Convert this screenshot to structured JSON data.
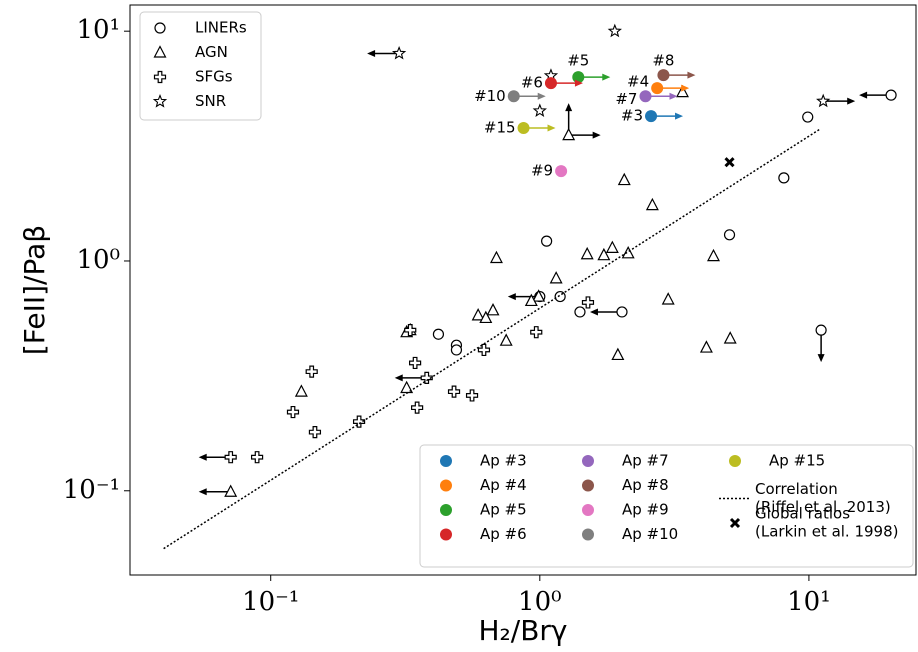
{
  "chart_data": {
    "type": "scatter",
    "xlabel": "H₂/Brγ",
    "ylabel": "[FeII]/Paβ",
    "xscale": "log",
    "yscale": "log",
    "xlim": [
      0.03,
      25
    ],
    "ylim": [
      0.043,
      13
    ],
    "xticks": [
      {
        "value": 0.1,
        "label": "10⁻¹"
      },
      {
        "value": 1,
        "label": "10⁰"
      },
      {
        "value": 10,
        "label": "10¹"
      }
    ],
    "yticks": [
      {
        "value": 0.1,
        "label": "10⁻¹"
      },
      {
        "value": 1,
        "label": "10⁰"
      },
      {
        "value": 10,
        "label": "10¹"
      }
    ],
    "series": [
      {
        "name": "LINERs",
        "marker": "circle",
        "color": "#000000",
        "legend": "upper left",
        "x": [
          20.2,
          9.9,
          8.07,
          5.07,
          1.06,
          1.0,
          1.19,
          1.41,
          2.02,
          0.42,
          0.49,
          0.49,
          11.1
        ],
        "y": [
          5.27,
          4.23,
          2.3,
          1.3,
          1.22,
          0.7,
          0.7,
          0.6,
          0.6,
          0.48,
          0.43,
          0.41,
          0.5
        ],
        "limits": [
          "left",
          null,
          null,
          null,
          null,
          "left",
          null,
          null,
          "left",
          null,
          null,
          null,
          "down"
        ]
      },
      {
        "name": "AGN",
        "marker": "triangle",
        "color": "#000000",
        "legend": "upper left",
        "x": [
          3.39,
          1.28,
          2.06,
          2.62,
          0.69,
          1.5,
          1.73,
          1.86,
          2.13,
          1.15,
          0.99,
          0.93,
          3.0,
          4.42,
          0.67,
          0.59,
          0.63,
          0.75,
          0.33,
          0.32,
          1.95,
          4.16,
          5.1,
          0.32,
          0.13,
          0.071
        ],
        "y": [
          5.43,
          3.53,
          2.25,
          1.75,
          1.03,
          1.07,
          1.06,
          1.14,
          1.08,
          0.84,
          0.7,
          0.67,
          0.68,
          1.05,
          0.61,
          0.58,
          0.565,
          0.45,
          0.5,
          0.49,
          0.39,
          0.42,
          0.46,
          0.28,
          0.27,
          0.099
        ],
        "limits": [
          null,
          "up-right",
          null,
          null,
          null,
          null,
          null,
          null,
          null,
          null,
          null,
          null,
          null,
          null,
          null,
          null,
          null,
          null,
          null,
          null,
          null,
          null,
          null,
          null,
          null,
          "left"
        ]
      },
      {
        "name": "SFGs",
        "marker": "plus",
        "color": "#000000",
        "legend": "upper left",
        "x": [
          0.071,
          0.089,
          0.142,
          0.121,
          0.146,
          0.213,
          0.33,
          0.344,
          0.38,
          0.35,
          0.48,
          0.56,
          0.62,
          0.97,
          1.51
        ],
        "y": [
          0.14,
          0.14,
          0.33,
          0.22,
          0.18,
          0.2,
          0.5,
          0.36,
          0.31,
          0.23,
          0.27,
          0.26,
          0.41,
          0.49,
          0.66
        ],
        "limits": [
          "left",
          null,
          null,
          null,
          null,
          null,
          null,
          null,
          "left",
          null,
          null,
          null,
          null,
          null,
          null
        ]
      },
      {
        "name": "SNR",
        "marker": "star",
        "color": "#000000",
        "legend": "upper left",
        "x": [
          0.3,
          1.9,
          1.1,
          1.0,
          11.3
        ],
        "y": [
          8.0,
          10.0,
          6.4,
          4.5,
          4.96
        ],
        "limits": [
          "left",
          null,
          null,
          null,
          "right"
        ]
      },
      {
        "name": "Ap #3",
        "point_label": "#3",
        "marker": "dot",
        "color": "#1f77b4",
        "legend": "lower right",
        "x": [
          2.59
        ],
        "y": [
          4.27
        ],
        "limits": [
          "right"
        ]
      },
      {
        "name": "Ap #4",
        "point_label": "#4",
        "marker": "dot",
        "color": "#ff7f0e",
        "legend": "lower right",
        "x": [
          2.73
        ],
        "y": [
          5.65
        ],
        "limits": [
          "right"
        ]
      },
      {
        "name": "Ap #5",
        "point_label": "#5",
        "marker": "dot",
        "color": "#2ca02c",
        "legend": "lower right",
        "x": [
          1.39
        ],
        "y": [
          6.31
        ],
        "limits": [
          "right"
        ]
      },
      {
        "name": "Ap #6",
        "point_label": "#6",
        "marker": "dot",
        "color": "#d62728",
        "legend": "lower right",
        "x": [
          1.1
        ],
        "y": [
          5.94
        ],
        "limits": [
          "right"
        ]
      },
      {
        "name": "Ap #7",
        "point_label": "#7",
        "marker": "dot",
        "color": "#9467bd",
        "legend": "lower right",
        "x": [
          2.47
        ],
        "y": [
          5.21
        ],
        "limits": [
          "right"
        ]
      },
      {
        "name": "Ap #8",
        "point_label": "#8",
        "marker": "dot",
        "color": "#8c564b",
        "legend": "lower right",
        "x": [
          2.88
        ],
        "y": [
          6.44
        ],
        "limits": [
          "right"
        ]
      },
      {
        "name": "Ap #9",
        "point_label": "#9",
        "marker": "dot",
        "color": "#e377c2",
        "legend": "lower right",
        "x": [
          1.2
        ],
        "y": [
          2.46
        ],
        "limits": [
          null
        ]
      },
      {
        "name": "Ap #10",
        "point_label": "#10",
        "marker": "dot",
        "color": "#7f7f7f",
        "legend": "lower right",
        "x": [
          0.8
        ],
        "y": [
          5.21
        ],
        "limits": [
          "right"
        ]
      },
      {
        "name": "Ap #15",
        "point_label": "#15",
        "marker": "dot",
        "color": "#bcbd22",
        "legend": "lower right",
        "x": [
          0.87
        ],
        "y": [
          3.79
        ],
        "limits": [
          "right"
        ]
      },
      {
        "name": [
          "Correlation",
          "(Riffel et al. 2013)"
        ],
        "marker": "dotted-line",
        "color": "#000000",
        "legend": "lower right",
        "x": [
          0.04,
          11
        ],
        "y": [
          0.056,
          3.75
        ]
      },
      {
        "name": [
          "Global ratios",
          "(Larkin et al. 1998)"
        ],
        "marker": "x",
        "color": "#000000",
        "legend": "lower right",
        "x": [
          5.07
        ],
        "y": [
          2.69
        ]
      }
    ]
  }
}
